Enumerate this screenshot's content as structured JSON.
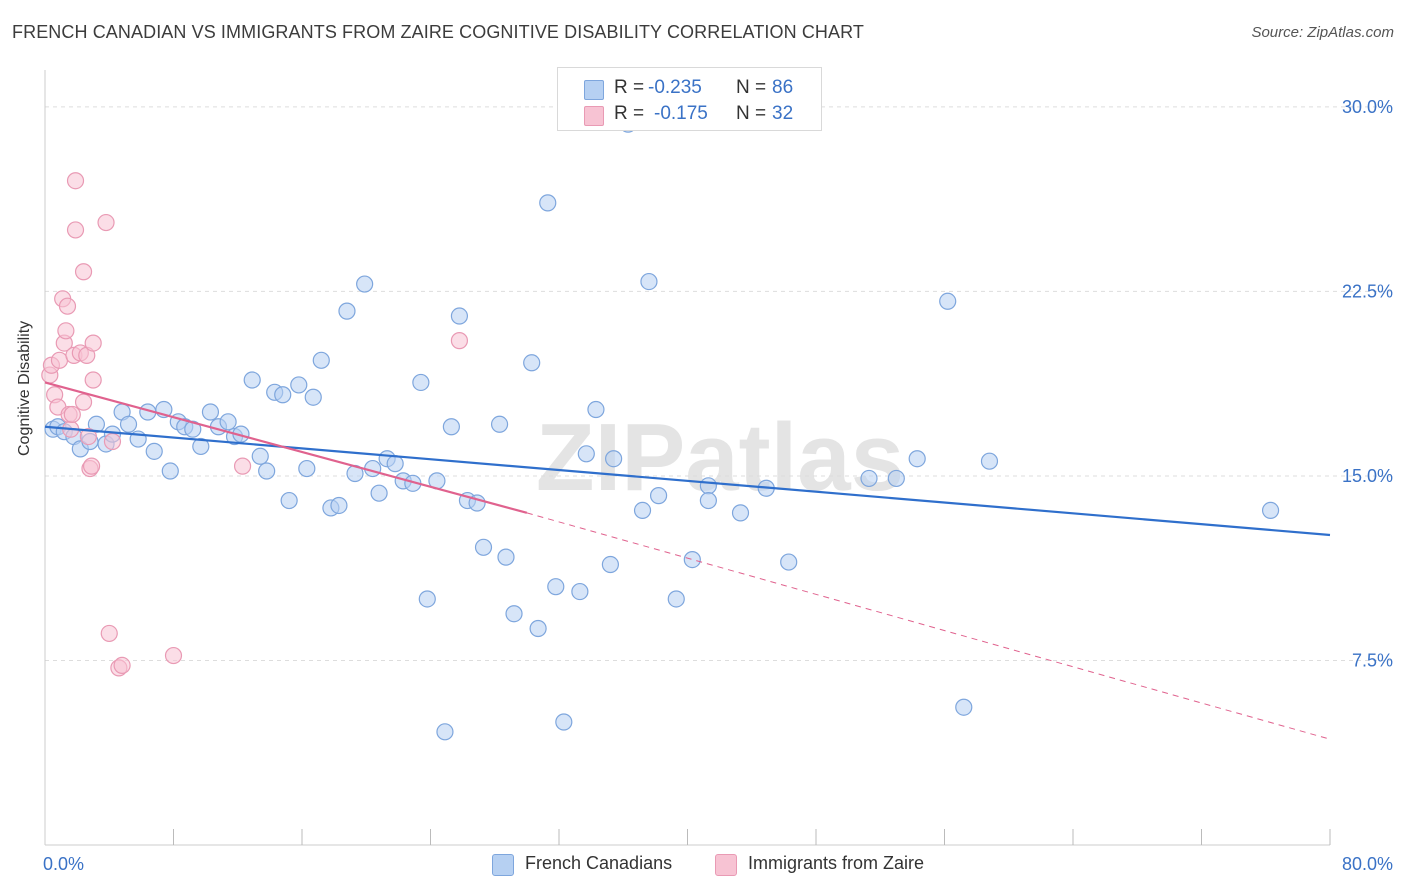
{
  "title": "FRENCH CANADIAN VS IMMIGRANTS FROM ZAIRE COGNITIVE DISABILITY CORRELATION CHART",
  "source": "Source: ZipAtlas.com",
  "watermark": "ZIPatlas",
  "legend": {
    "rows": [
      {
        "r_label": "R =",
        "r_value": "-0.235",
        "n_label": "N =",
        "n_value": "86"
      },
      {
        "r_label": "R =",
        "r_value": "-0.175",
        "n_label": "N =",
        "n_value": "32"
      }
    ]
  },
  "bottom_legend": [
    "French Canadians",
    "Immigrants from Zaire"
  ],
  "colors": {
    "blue_fill": "#b6d0f2",
    "blue_stroke": "#7ea6dd",
    "blue_line": "#2f6fcc",
    "pink_fill": "#f7c3d3",
    "pink_stroke": "#e99ab4",
    "pink_line": "#e0628e",
    "tick_text": "#3a72c6",
    "grid": "#dddddd"
  },
  "chart_data": {
    "type": "scatter",
    "title": "FRENCH CANADIAN VS IMMIGRANTS FROM ZAIRE COGNITIVE DISABILITY CORRELATION CHART",
    "xlabel": "",
    "ylabel": "Cognitive Disability",
    "xlim": [
      0,
      80
    ],
    "ylim": [
      0,
      31.5
    ],
    "x_tick_labels": [
      {
        "value": 0,
        "label": "0.0%"
      },
      {
        "value": 80,
        "label": "80.0%"
      }
    ],
    "y_tick_labels": [
      {
        "value": 7.5,
        "label": "7.5%"
      },
      {
        "value": 15.0,
        "label": "15.0%"
      },
      {
        "value": 22.5,
        "label": "22.5%"
      },
      {
        "value": 30.0,
        "label": "30.0%"
      }
    ],
    "grid": "horizontal dashed",
    "legend_placement": "top-center",
    "series": [
      {
        "name": "French Canadians",
        "color": "#7ea6dd",
        "trend": {
          "x": [
            0,
            80
          ],
          "y": [
            17.0,
            12.6
          ]
        },
        "points": [
          [
            0.5,
            16.9
          ],
          [
            0.8,
            17.0
          ],
          [
            1.2,
            16.8
          ],
          [
            1.8,
            16.6
          ],
          [
            2.2,
            16.1
          ],
          [
            2.8,
            16.4
          ],
          [
            3.2,
            17.1
          ],
          [
            3.8,
            16.3
          ],
          [
            4.2,
            16.7
          ],
          [
            4.8,
            17.6
          ],
          [
            5.2,
            17.1
          ],
          [
            5.8,
            16.5
          ],
          [
            6.4,
            17.6
          ],
          [
            6.8,
            16.0
          ],
          [
            7.4,
            17.7
          ],
          [
            7.8,
            15.2
          ],
          [
            8.3,
            17.2
          ],
          [
            8.7,
            17.0
          ],
          [
            9.2,
            16.9
          ],
          [
            9.7,
            16.2
          ],
          [
            10.3,
            17.6
          ],
          [
            10.8,
            17.0
          ],
          [
            11.4,
            17.2
          ],
          [
            11.8,
            16.6
          ],
          [
            12.2,
            16.7
          ],
          [
            12.9,
            18.9
          ],
          [
            13.4,
            15.8
          ],
          [
            13.8,
            15.2
          ],
          [
            14.3,
            18.4
          ],
          [
            14.8,
            18.3
          ],
          [
            15.2,
            14.0
          ],
          [
            15.8,
            18.7
          ],
          [
            16.3,
            15.3
          ],
          [
            16.7,
            18.2
          ],
          [
            17.2,
            19.7
          ],
          [
            17.8,
            13.7
          ],
          [
            18.3,
            13.8
          ],
          [
            18.8,
            21.7
          ],
          [
            19.3,
            15.1
          ],
          [
            19.9,
            22.8
          ],
          [
            20.4,
            15.3
          ],
          [
            20.8,
            14.3
          ],
          [
            21.3,
            15.7
          ],
          [
            21.8,
            15.5
          ],
          [
            22.3,
            14.8
          ],
          [
            22.9,
            14.7
          ],
          [
            23.4,
            18.8
          ],
          [
            23.8,
            10.0
          ],
          [
            24.4,
            14.8
          ],
          [
            24.9,
            4.6
          ],
          [
            25.3,
            17.0
          ],
          [
            25.8,
            21.5
          ],
          [
            26.3,
            14.0
          ],
          [
            26.9,
            13.9
          ],
          [
            27.3,
            12.1
          ],
          [
            28.3,
            17.1
          ],
          [
            28.7,
            11.7
          ],
          [
            29.2,
            9.4
          ],
          [
            30.3,
            19.6
          ],
          [
            30.7,
            8.8
          ],
          [
            31.3,
            26.1
          ],
          [
            31.8,
            10.5
          ],
          [
            32.3,
            5.0
          ],
          [
            33.3,
            10.3
          ],
          [
            33.7,
            15.9
          ],
          [
            34.3,
            17.7
          ],
          [
            35.2,
            11.4
          ],
          [
            35.4,
            15.7
          ],
          [
            36.3,
            29.3
          ],
          [
            37.2,
            13.6
          ],
          [
            37.6,
            22.9
          ],
          [
            38.2,
            14.2
          ],
          [
            39.3,
            10.0
          ],
          [
            40.3,
            11.6
          ],
          [
            41.3,
            14.6
          ],
          [
            41.3,
            14.0
          ],
          [
            43.3,
            13.5
          ],
          [
            44.9,
            14.5
          ],
          [
            46.3,
            11.5
          ],
          [
            51.3,
            14.9
          ],
          [
            53.0,
            14.9
          ],
          [
            54.3,
            15.7
          ],
          [
            56.2,
            22.1
          ],
          [
            58.8,
            15.6
          ],
          [
            57.2,
            5.6
          ],
          [
            76.3,
            13.6
          ]
        ]
      },
      {
        "name": "Immigrants from Zaire",
        "color": "#e99ab4",
        "trend_solid": {
          "x": [
            0,
            30
          ],
          "y": [
            18.8,
            13.5
          ]
        },
        "trend_dashed": {
          "x": [
            30,
            80
          ],
          "y": [
            13.5,
            4.3
          ]
        },
        "points": [
          [
            0.3,
            19.1
          ],
          [
            0.4,
            19.5
          ],
          [
            0.6,
            18.3
          ],
          [
            0.8,
            17.8
          ],
          [
            0.9,
            19.7
          ],
          [
            1.1,
            22.2
          ],
          [
            1.2,
            20.4
          ],
          [
            1.3,
            20.9
          ],
          [
            1.4,
            21.9
          ],
          [
            1.5,
            17.5
          ],
          [
            1.6,
            16.9
          ],
          [
            1.7,
            17.5
          ],
          [
            1.8,
            19.9
          ],
          [
            1.9,
            27.0
          ],
          [
            1.9,
            25.0
          ],
          [
            2.2,
            20.0
          ],
          [
            2.4,
            18.0
          ],
          [
            2.4,
            23.3
          ],
          [
            2.6,
            19.9
          ],
          [
            2.7,
            16.6
          ],
          [
            2.8,
            15.3
          ],
          [
            2.9,
            15.4
          ],
          [
            3.0,
            20.4
          ],
          [
            3.0,
            18.9
          ],
          [
            3.8,
            25.3
          ],
          [
            4.0,
            8.6
          ],
          [
            4.2,
            16.4
          ],
          [
            4.6,
            7.2
          ],
          [
            4.8,
            7.3
          ],
          [
            8.0,
            7.7
          ],
          [
            12.3,
            15.4
          ],
          [
            25.8,
            20.5
          ]
        ]
      }
    ]
  }
}
